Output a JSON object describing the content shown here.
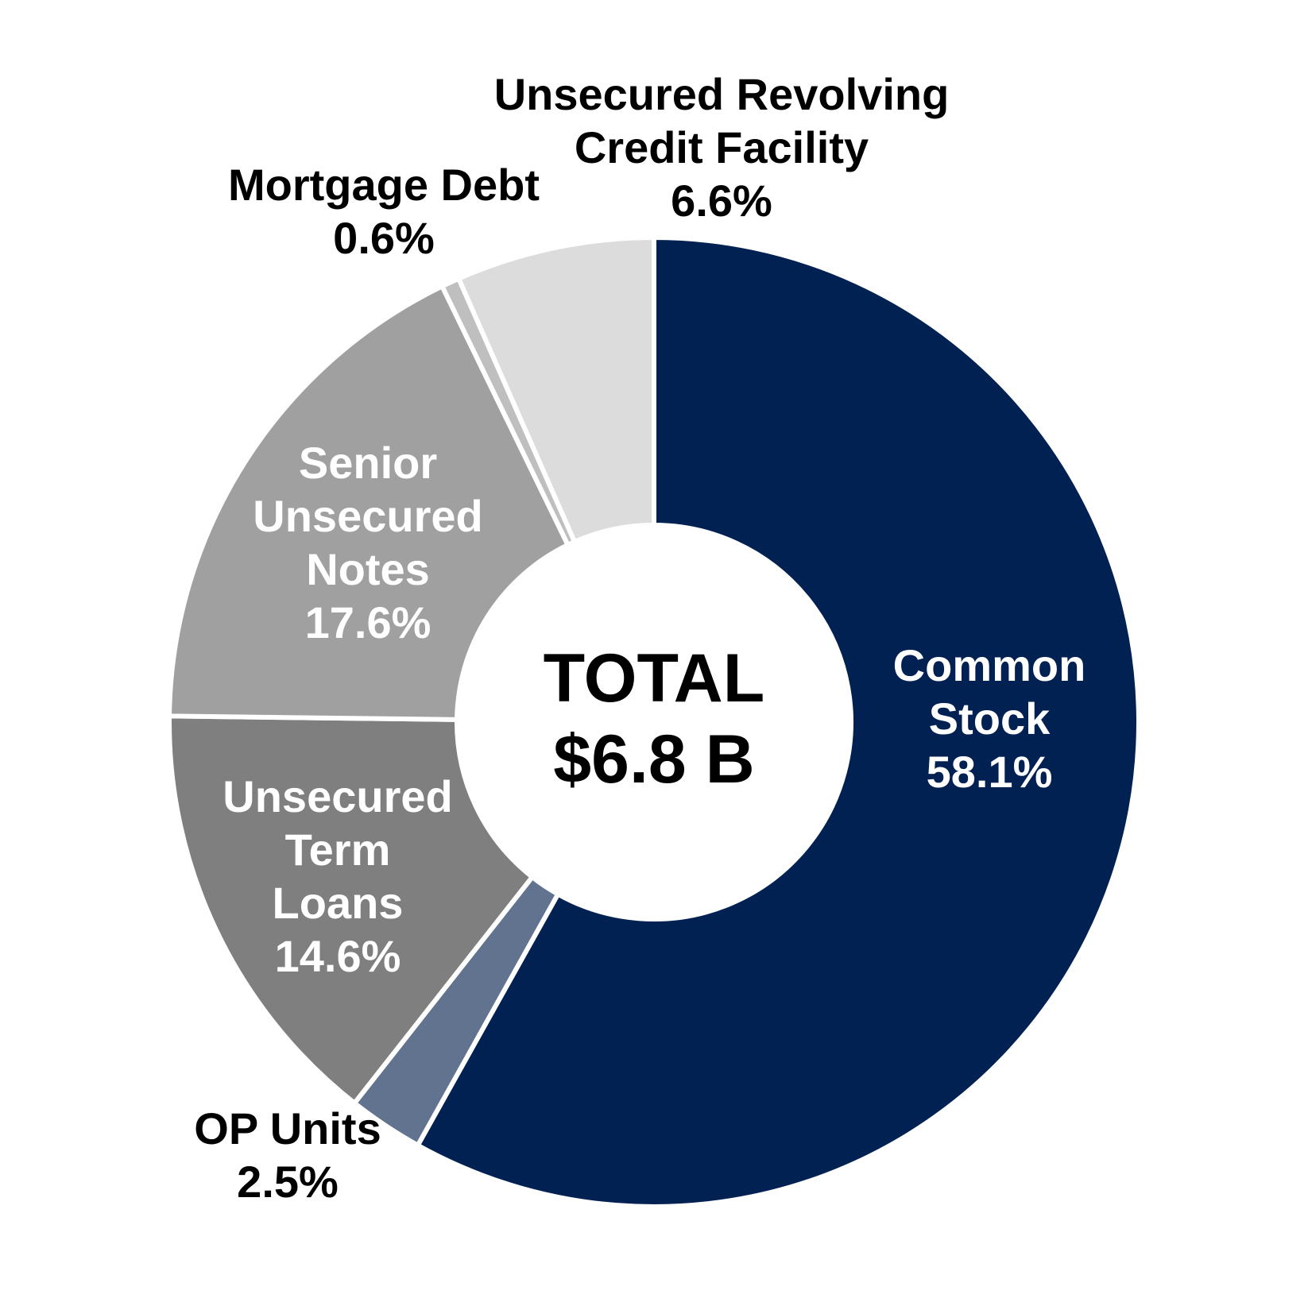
{
  "chart_data": {
    "type": "pie",
    "style": "donut",
    "center_text": [
      "TOTAL",
      "$6.8 B"
    ],
    "slices": [
      {
        "name": "Common Stock",
        "label_lines": [
          "Common",
          "Stock"
        ],
        "value_label": "58.1%",
        "value": 58.1,
        "color": "#022153",
        "label_color": "#ffffff",
        "label_placement": "inside"
      },
      {
        "name": "OP Units",
        "label_lines": [
          "OP Units"
        ],
        "value_label": "2.5%",
        "value": 2.5,
        "color": "#62738f",
        "label_color": "#000000",
        "label_placement": "outside"
      },
      {
        "name": "Unsecured Term Loans",
        "label_lines": [
          "Unsecured",
          "Term",
          "Loans"
        ],
        "value_label": "14.6%",
        "value": 14.6,
        "color": "#7f7f7f",
        "label_color": "#ffffff",
        "label_placement": "inside"
      },
      {
        "name": "Senior Unsecured Notes",
        "label_lines": [
          "Senior",
          "Unsecured",
          "Notes"
        ],
        "value_label": "17.6%",
        "value": 17.6,
        "color": "#a0a0a0",
        "label_color": "#ffffff",
        "label_placement": "inside"
      },
      {
        "name": "Mortgage Debt",
        "label_lines": [
          "Mortgage Debt"
        ],
        "value_label": "0.6%",
        "value": 0.6,
        "color": "#bfbfbf",
        "label_color": "#000000",
        "label_placement": "outside"
      },
      {
        "name": "Unsecured Revolving Credit Facility",
        "label_lines": [
          "Unsecured Revolving",
          "Credit Facility"
        ],
        "value_label": "6.6%",
        "value": 6.6,
        "color": "#dcdcdc",
        "label_color": "#000000",
        "label_placement": "outside"
      }
    ],
    "start": "12 o'clock",
    "direction": "clockwise",
    "legend": "none"
  }
}
